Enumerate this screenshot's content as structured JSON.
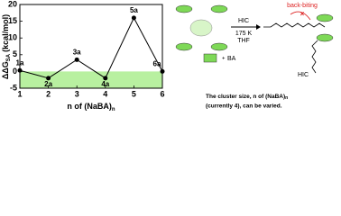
{
  "chart_data": {
    "type": "line",
    "ylabel": {
      "main": "ΔΔG",
      "sub": "SA",
      "unit": "(kcal/mol)"
    },
    "xlabel": {
      "main": "n of (NaBA)",
      "sub": "n"
    },
    "x": [
      1,
      2,
      3,
      4,
      5,
      6
    ],
    "series": [
      {
        "color": "#000000",
        "values": [
          0.3,
          -2,
          3.5,
          -2,
          16,
          0
        ],
        "point_labels": [
          "1a",
          "2a",
          "3a",
          "4a",
          "5a",
          "6a"
        ]
      }
    ],
    "xlim": [
      1,
      6
    ],
    "xticks": [
      1,
      2,
      3,
      4,
      5,
      6
    ],
    "ylim": [
      -5,
      20
    ],
    "yticks": [
      -5,
      0,
      5,
      10,
      15,
      20
    ],
    "shaded_region": [
      -5,
      0
    ],
    "shaded_color": "#b8f0a0",
    "annotations": {
      "hic1": "HIC",
      "temp": "175 K",
      "solvent": "THF",
      "backbiting": "back-biting",
      "ba": "BA",
      "hic2": "HIC",
      "note1": "The cluster size, n of (NaBA)",
      "note1_sub": "n",
      "note2": "(currently 4), can be varied."
    }
  }
}
